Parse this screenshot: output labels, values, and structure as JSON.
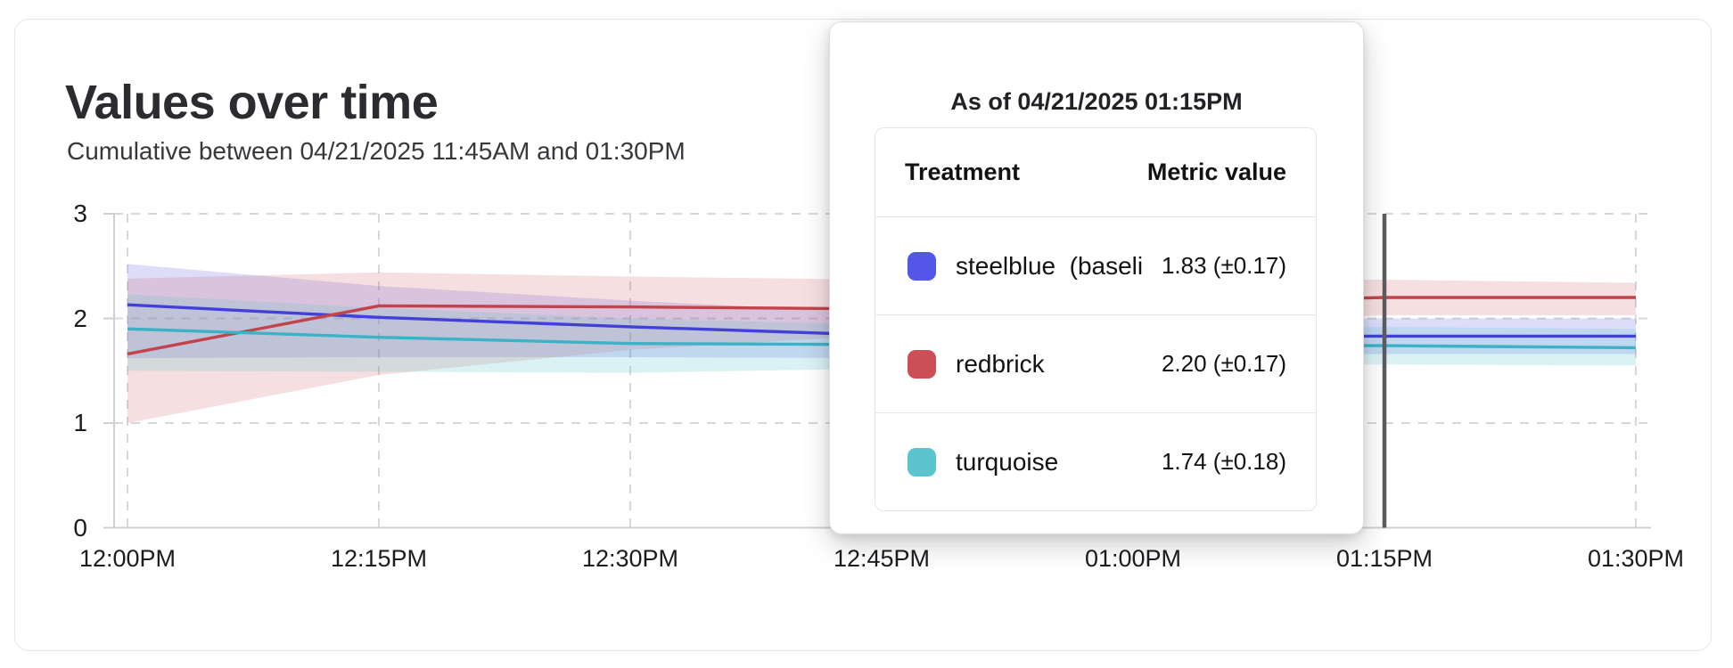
{
  "header": {
    "title": "Values over time",
    "subtitle": "Cumulative between 04/21/2025 11:45AM and 01:30PM"
  },
  "tooltip": {
    "title": "As of 04/21/2025 01:15PM",
    "columns": [
      "Treatment",
      "Metric value"
    ],
    "rows": [
      {
        "label": "steelblue  (baseli",
        "value": "1.83 (±0.17)",
        "color": "#5456e8"
      },
      {
        "label": "redbrick",
        "value": "2.20 (±0.17)",
        "color": "#cc4f55"
      },
      {
        "label": "turquoise",
        "value": "1.74 (±0.18)",
        "color": "#5bc4ce"
      }
    ]
  },
  "chart_data": {
    "type": "line",
    "title": "Values over time",
    "xlabel": "",
    "ylabel": "",
    "x_labels": [
      "12:00PM",
      "12:15PM",
      "12:30PM",
      "12:45PM",
      "01:00PM",
      "01:15PM",
      "01:30PM"
    ],
    "y_ticks": [
      0,
      1,
      2,
      3
    ],
    "ylim": [
      0,
      3
    ],
    "grid": true,
    "hover_label": "01:15PM",
    "hover_color": "#5c5c60",
    "grid_color": "#d8d8dc",
    "axis_color": "#d0d0d4",
    "series": [
      {
        "key": "steelblue",
        "name": "steelblue (baseline)",
        "color": "#4240d6",
        "band_color": "rgba(84,86,232,0.20)",
        "values": [
          2.13,
          2.01,
          1.92,
          1.84,
          1.83,
          1.83,
          1.83
        ],
        "upper": [
          2.52,
          2.31,
          2.17,
          2.05,
          2.0,
          2.0,
          2.0
        ],
        "lower": [
          1.62,
          1.63,
          1.63,
          1.62,
          1.65,
          1.66,
          1.66
        ]
      },
      {
        "key": "redbrick",
        "name": "redbrick",
        "color": "#c2434b",
        "band_color": "rgba(204,79,85,0.18)",
        "values": [
          1.66,
          2.12,
          2.11,
          2.09,
          2.14,
          2.2,
          2.2
        ],
        "upper": [
          2.38,
          2.44,
          2.4,
          2.37,
          2.37,
          2.37,
          2.34
        ],
        "lower": [
          1.0,
          1.46,
          1.7,
          1.84,
          1.95,
          2.03,
          2.03
        ]
      },
      {
        "key": "turquoise",
        "name": "turquoise",
        "color": "#3db1c5",
        "band_color": "rgba(91,196,206,0.22)",
        "values": [
          1.9,
          1.82,
          1.76,
          1.75,
          1.74,
          1.74,
          1.72
        ],
        "upper": [
          2.23,
          2.1,
          2.0,
          1.94,
          1.92,
          1.92,
          1.9
        ],
        "lower": [
          1.5,
          1.49,
          1.48,
          1.52,
          1.55,
          1.56,
          1.55
        ]
      }
    ]
  }
}
